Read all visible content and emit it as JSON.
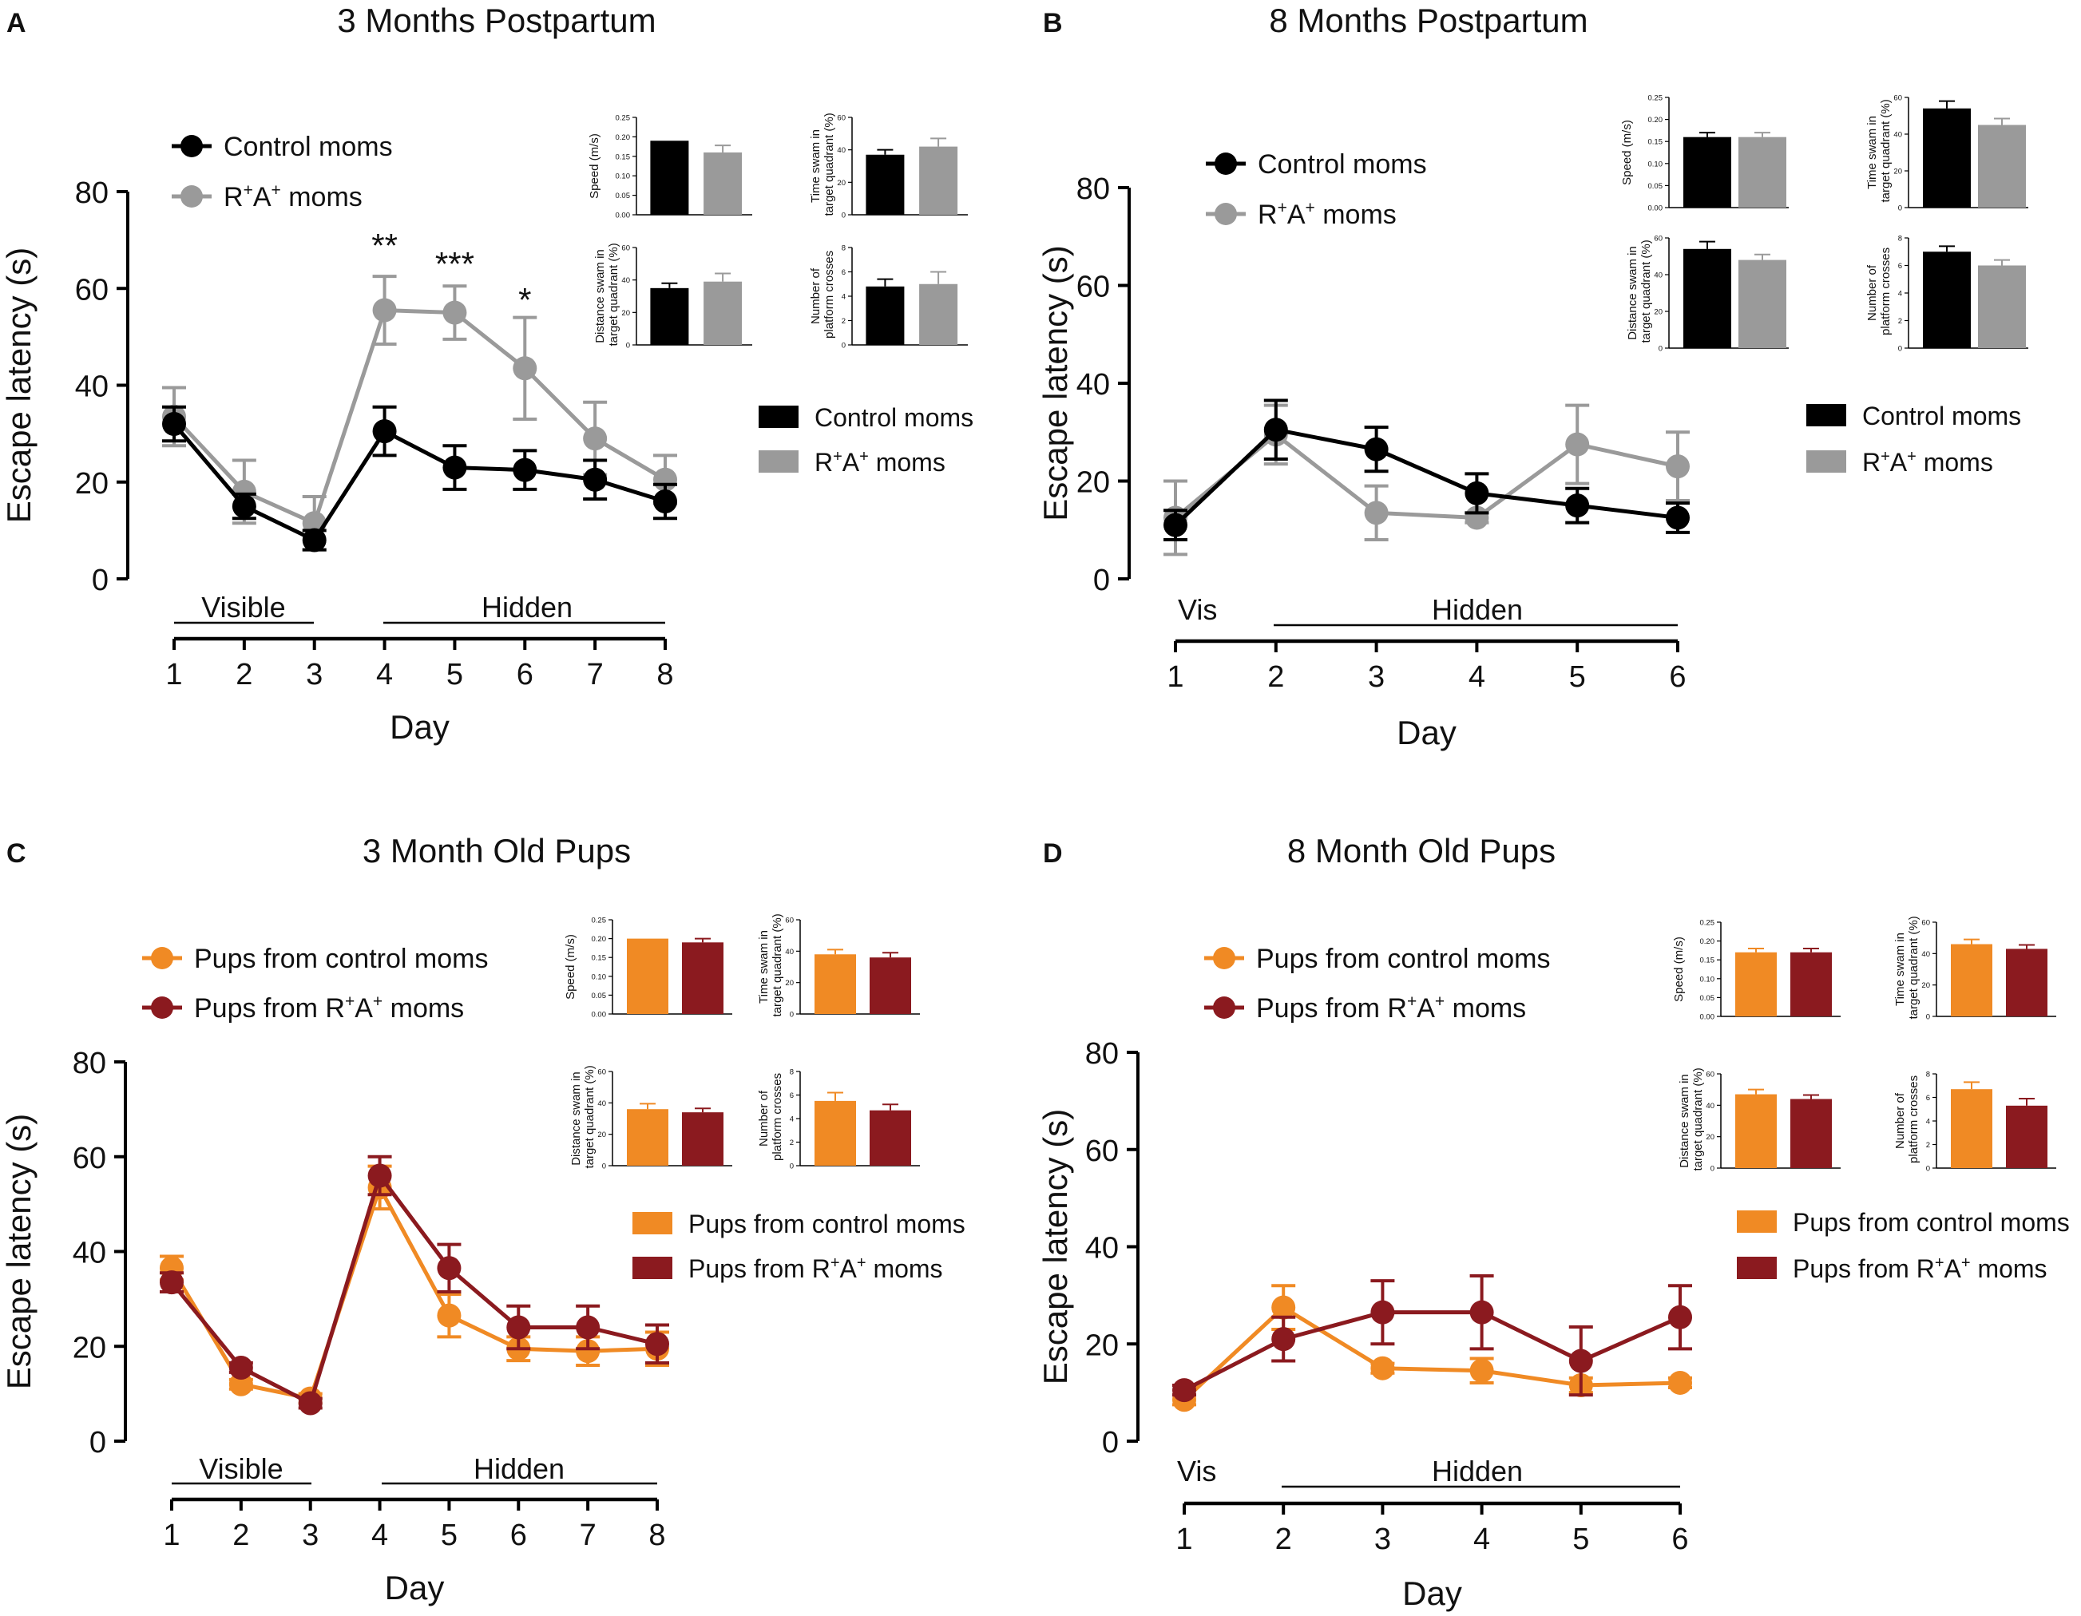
{
  "colors": {
    "control_mom": "#000000",
    "ra_mom": "#9a9a9a",
    "pup_control": "#f08a24",
    "pup_ra": "#8b1a1f"
  },
  "chart_data": [
    {
      "panel": "A",
      "type": "line",
      "title": "3 Months Postpartum",
      "xlabel": "Day",
      "ylabel": "Escape latency (s)",
      "x": [
        1,
        2,
        3,
        4,
        5,
        6,
        7,
        8
      ],
      "xlim": [
        1,
        8
      ],
      "ylim": [
        0,
        80
      ],
      "yticks": [
        0,
        20,
        40,
        60,
        80
      ],
      "series": [
        {
          "name": "Control moms",
          "color": "#000000",
          "values": [
            32,
            15,
            8,
            30.5,
            23,
            22.5,
            20.5,
            16
          ],
          "errors": [
            3.5,
            2.5,
            2,
            5,
            4.5,
            4,
            4,
            3.5
          ]
        },
        {
          "name": "R⁺A⁺ moms",
          "color": "#9a9a9a",
          "values": [
            33.5,
            18,
            11.5,
            55.5,
            55,
            43.5,
            29,
            20.5
          ],
          "errors": [
            6,
            6.5,
            5.5,
            7,
            5.5,
            10.5,
            7.5,
            5
          ]
        }
      ],
      "significance": [
        {
          "x": 4,
          "label": "**"
        },
        {
          "x": 5,
          "label": "***"
        },
        {
          "x": 6,
          "label": "*"
        }
      ],
      "phases": [
        {
          "label": "Visible",
          "from": 1,
          "to": 3
        },
        {
          "label": "Hidden",
          "from": 4,
          "to": 8
        }
      ],
      "bar_legend": [
        "Control moms",
        "R⁺A⁺ moms"
      ],
      "insets": [
        {
          "ylabel": "Speed (m/s)",
          "yticks": [
            "0.00",
            "0.05",
            "0.10",
            "0.15",
            "0.20",
            "0.25"
          ],
          "ylim": [
            0,
            0.25
          ],
          "values": [
            0.19,
            0.16
          ],
          "errors": [
            0,
            0.018
          ]
        },
        {
          "ylabel": "Time swam in target quadrant (%)",
          "yticks": [
            "0",
            "20",
            "40",
            "60"
          ],
          "ylim": [
            0,
            60
          ],
          "values": [
            37,
            42
          ],
          "errors": [
            3,
            5
          ]
        },
        {
          "ylabel": "Distance swam in target quadrant (%)",
          "yticks": [
            "0",
            "20",
            "40",
            "60"
          ],
          "ylim": [
            0,
            60
          ],
          "values": [
            35,
            39
          ],
          "errors": [
            3,
            5
          ]
        },
        {
          "ylabel": "Number of platform crosses",
          "yticks": [
            "0",
            "2",
            "4",
            "6",
            "8"
          ],
          "ylim": [
            0,
            8
          ],
          "values": [
            4.8,
            5
          ],
          "errors": [
            0.6,
            1
          ]
        }
      ]
    },
    {
      "panel": "B",
      "type": "line",
      "title": "8 Months Postpartum",
      "xlabel": "Day",
      "ylabel": "Escape latency (s)",
      "x": [
        1,
        2,
        3,
        4,
        5,
        6
      ],
      "xlim": [
        1,
        6
      ],
      "ylim": [
        0,
        80
      ],
      "yticks": [
        0,
        20,
        40,
        60,
        80
      ],
      "series": [
        {
          "name": "Control moms",
          "color": "#000000",
          "values": [
            11,
            30.5,
            26.5,
            17.5,
            15,
            12.5
          ],
          "errors": [
            3,
            6,
            4.5,
            4,
            3.5,
            3
          ]
        },
        {
          "name": "R⁺A⁺ moms",
          "color": "#9a9a9a",
          "values": [
            12.5,
            29.5,
            13.5,
            12.5,
            27.5,
            23
          ],
          "errors": [
            7.5,
            6,
            5.5,
            1,
            8,
            7
          ]
        }
      ],
      "significance": [],
      "phases": [
        {
          "label": "Vis",
          "from": 1,
          "to": 1
        },
        {
          "label": "Hidden",
          "from": 2,
          "to": 6
        }
      ],
      "bar_legend": [
        "Control moms",
        "R⁺A⁺ moms"
      ],
      "insets": [
        {
          "ylabel": "Speed (m/s)",
          "yticks": [
            "0.00",
            "0.05",
            "0.10",
            "0.15",
            "0.20",
            "0.25"
          ],
          "ylim": [
            0,
            0.25
          ],
          "values": [
            0.16,
            0.16
          ],
          "errors": [
            0.01,
            0.01
          ]
        },
        {
          "ylabel": "Time swam in target quadrant (%)",
          "yticks": [
            "0",
            "20",
            "40",
            "60"
          ],
          "ylim": [
            0,
            60
          ],
          "values": [
            54,
            45
          ],
          "errors": [
            4,
            3.5
          ]
        },
        {
          "ylabel": "Distance swam in target quadrant (%)",
          "yticks": [
            "0",
            "20",
            "40",
            "60"
          ],
          "ylim": [
            0,
            60
          ],
          "values": [
            54,
            48
          ],
          "errors": [
            4,
            3
          ]
        },
        {
          "ylabel": "Number of platform crosses",
          "yticks": [
            "0",
            "2",
            "4",
            "6",
            "8"
          ],
          "ylim": [
            0,
            8
          ],
          "values": [
            7,
            6
          ],
          "errors": [
            0.4,
            0.4
          ]
        }
      ]
    },
    {
      "panel": "C",
      "type": "line",
      "title": "3 Month Old Pups",
      "xlabel": "Day",
      "ylabel": "Escape latency (s)",
      "x": [
        1,
        2,
        3,
        4,
        5,
        6,
        7,
        8
      ],
      "xlim": [
        1,
        8
      ],
      "ylim": [
        0,
        80
      ],
      "yticks": [
        0,
        20,
        40,
        60,
        80
      ],
      "series": [
        {
          "name": "Pups from control moms",
          "color": "#f08a24",
          "values": [
            36.5,
            12,
            9,
            53.5,
            26.5,
            19.5,
            19,
            19.5
          ],
          "errors": [
            2.5,
            1,
            1,
            4.5,
            4.5,
            2.5,
            3,
            3.5
          ]
        },
        {
          "name": "Pups from R⁺A⁺ moms",
          "color": "#8b1a1f",
          "values": [
            33.5,
            15.5,
            8,
            56,
            36.5,
            24,
            24,
            20.5
          ],
          "errors": [
            2,
            1,
            1,
            4,
            5,
            4.5,
            4.5,
            4
          ]
        }
      ],
      "significance": [],
      "phases": [
        {
          "label": "Visible",
          "from": 1,
          "to": 3
        },
        {
          "label": "Hidden",
          "from": 4,
          "to": 8
        }
      ],
      "bar_legend": [
        "Pups from control moms",
        "Pups from R⁺A⁺ moms"
      ],
      "insets": [
        {
          "ylabel": "Speed (m/s)",
          "yticks": [
            "0.00",
            "0.05",
            "0.10",
            "0.15",
            "0.20",
            "0.25"
          ],
          "ylim": [
            0,
            0.25
          ],
          "values": [
            0.2,
            0.19
          ],
          "errors": [
            0,
            0.01
          ]
        },
        {
          "ylabel": "Time swam in target quadrant (%)",
          "yticks": [
            "0",
            "20",
            "40",
            "60"
          ],
          "ylim": [
            0,
            60
          ],
          "values": [
            38,
            36
          ],
          "errors": [
            3,
            3
          ]
        },
        {
          "ylabel": "Distance swam in target quadrant (%)",
          "yticks": [
            "0",
            "20",
            "40",
            "60"
          ],
          "ylim": [
            0,
            60
          ],
          "values": [
            36,
            34
          ],
          "errors": [
            3.5,
            2.5
          ]
        },
        {
          "ylabel": "Number of platform crosses",
          "yticks": [
            "0",
            "2",
            "4",
            "6",
            "8"
          ],
          "ylim": [
            0,
            8
          ],
          "values": [
            5.5,
            4.7
          ],
          "errors": [
            0.7,
            0.5
          ]
        }
      ]
    },
    {
      "panel": "D",
      "type": "line",
      "title": "8 Month Old Pups",
      "xlabel": "Day",
      "ylabel": "Escape latency (s)",
      "x": [
        1,
        2,
        3,
        4,
        5,
        6
      ],
      "xlim": [
        1,
        6
      ],
      "ylim": [
        0,
        80
      ],
      "yticks": [
        0,
        20,
        40,
        60,
        80
      ],
      "series": [
        {
          "name": "Pups from control moms",
          "color": "#f08a24",
          "values": [
            8.5,
            27.5,
            15,
            14.5,
            11.5,
            12
          ],
          "errors": [
            1,
            4.5,
            1,
            2.5,
            1.5,
            1
          ]
        },
        {
          "name": "Pups from R⁺A⁺ moms",
          "color": "#8b1a1f",
          "values": [
            10.5,
            21,
            26.5,
            26.5,
            16.5,
            25.5
          ],
          "errors": [
            1,
            4.5,
            6.5,
            7.5,
            7,
            6.5
          ]
        }
      ],
      "significance": [],
      "phases": [
        {
          "label": "Vis",
          "from": 1,
          "to": 1
        },
        {
          "label": "Hidden",
          "from": 2,
          "to": 6
        }
      ],
      "bar_legend": [
        "Pups from control moms",
        "Pups from R⁺A⁺ moms"
      ],
      "insets": [
        {
          "ylabel": "Speed (m/s)",
          "yticks": [
            "0.00",
            "0.05",
            "0.10",
            "0.15",
            "0.20",
            "0.25"
          ],
          "ylim": [
            0,
            0.25
          ],
          "values": [
            0.17,
            0.17
          ],
          "errors": [
            0.01,
            0.01
          ]
        },
        {
          "ylabel": "Time swam in target quadrant (%)",
          "yticks": [
            "0",
            "20",
            "40",
            "60"
          ],
          "ylim": [
            0,
            60
          ],
          "values": [
            46,
            43
          ],
          "errors": [
            3,
            2.5
          ]
        },
        {
          "ylabel": "Distance swam in target quadrant (%)",
          "yticks": [
            "0",
            "20",
            "40",
            "60"
          ],
          "ylim": [
            0,
            60
          ],
          "values": [
            47,
            44
          ],
          "errors": [
            3,
            2.5
          ]
        },
        {
          "ylabel": "Number of platform crosses",
          "yticks": [
            "0",
            "2",
            "4",
            "6",
            "8"
          ],
          "ylim": [
            0,
            8
          ],
          "values": [
            6.7,
            5.3
          ],
          "errors": [
            0.6,
            0.6
          ]
        }
      ]
    }
  ]
}
